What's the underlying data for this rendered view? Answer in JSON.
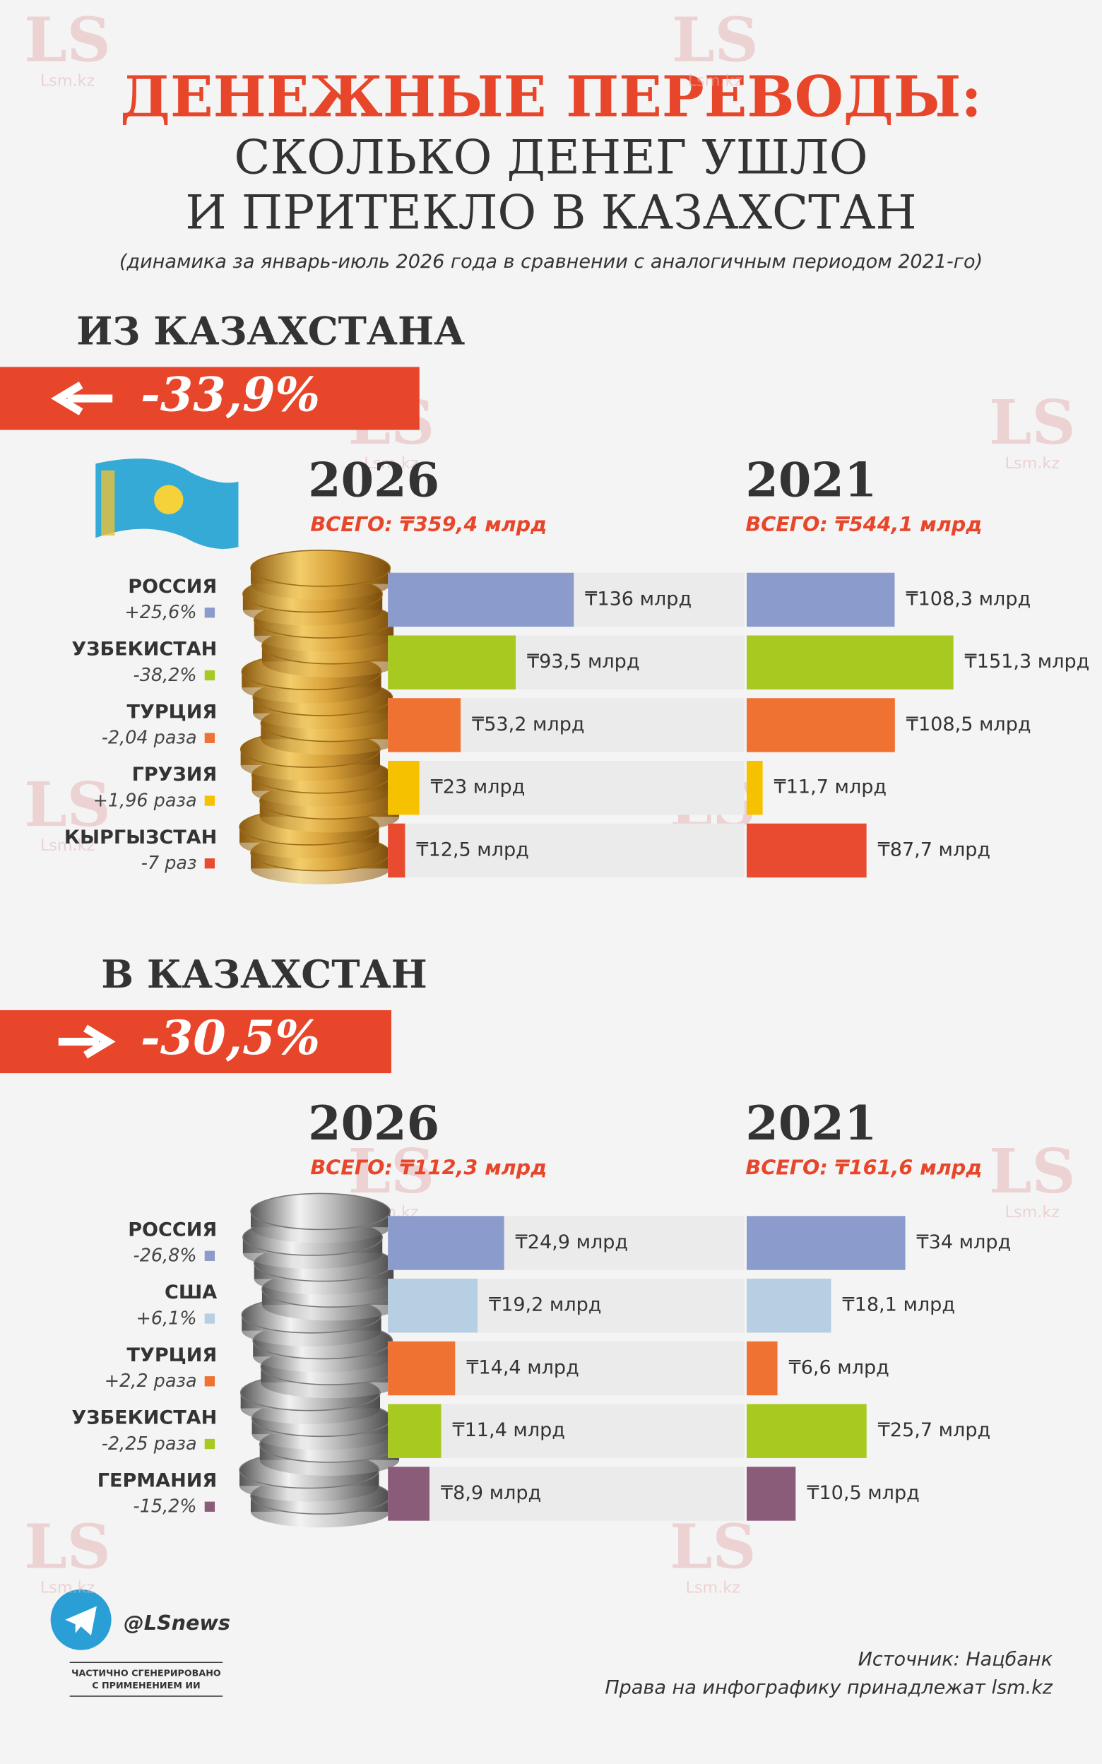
{
  "watermark": {
    "logo": "LS",
    "site": "Lsm.kz"
  },
  "header": {
    "title": "ДЕНЕЖНЫЕ ПЕРЕВОДЫ:",
    "subtitle_lines": [
      "СКОЛЬКО ДЕНЕГ УШЛО",
      "И ПРИТЕКЛО В КАЗАХСТАН"
    ],
    "note": "(динамика за январь-июль 2026 года в сравнении с аналогичным периодом 2021-го)"
  },
  "sections": [
    {
      "title": "ИЗ КАЗАХСТАНА",
      "change": "-33,9%",
      "countries": [
        {
          "name": "РОССИЯ",
          "change": "+25,6%",
          "color": "#8b9bcb"
        },
        {
          "name": "УЗБЕКИСТАН",
          "change": "-38,2%",
          "color": "#a8c920"
        },
        {
          "name": "ТУРЦИЯ",
          "change": "-2,04 раза",
          "color": "#f07232"
        },
        {
          "name": "ГРУЗИЯ",
          "change": "+1,96 раза",
          "color": "#f6c200"
        },
        {
          "name": "КЫРГЫЗСТАН",
          "change": "-7 раз",
          "color": "#e84b30"
        }
      ],
      "panels": [
        {
          "year": "2026",
          "total": "ВСЕГО: ₸359,4 млрд",
          "values": [
            136,
            93.5,
            53.2,
            23,
            12.5
          ],
          "value_labels": [
            "₸136 млрд",
            "₸93,5 млрд",
            "₸53,2 млрд",
            "₸23 млрд",
            "₸12,5 млрд"
          ]
        },
        {
          "year": "2021",
          "total": "ВСЕГО: ₸544,1 млрд",
          "values": [
            108.3,
            151.3,
            108.5,
            11.7,
            87.7
          ],
          "value_labels": [
            "₸108,3 млрд",
            "₸151,3 млрд",
            "₸108,5 млрд",
            "₸11,7 млрд",
            "₸87,7 млрд"
          ]
        }
      ]
    },
    {
      "title": "В КАЗАХСТАН",
      "change": "-30,5%",
      "countries": [
        {
          "name": "РОССИЯ",
          "change": "-26,8%",
          "color": "#8b9bcb"
        },
        {
          "name": "США",
          "change": "+6,1%",
          "color": "#b7cfe2"
        },
        {
          "name": "ТУРЦИЯ",
          "change": "+2,2 раза",
          "color": "#f07232"
        },
        {
          "name": "УЗБЕКИСТАН",
          "change": "-2,25 раза",
          "color": "#a8c920"
        },
        {
          "name": "ГЕРМАНИЯ",
          "change": "-15,2%",
          "color": "#8a5c7a"
        }
      ],
      "panels": [
        {
          "year": "2026",
          "total": "ВСЕГО: ₸112,3 млрд",
          "values": [
            24.9,
            19.2,
            14.4,
            11.4,
            8.9
          ],
          "value_labels": [
            "₸24,9 млрд",
            "₸19,2 млрд",
            "₸14,4 млрд",
            "₸11,4 млрд",
            "₸8,9 млрд"
          ]
        },
        {
          "year": "2021",
          "total": "ВСЕГО: ₸161,6 млрд",
          "values": [
            34,
            18.1,
            6.6,
            25.7,
            10.5
          ],
          "value_labels": [
            "₸34 млрд",
            "₸18,1 млрд",
            "₸6,6 млрд",
            "₸25,7 млрд",
            "₸10,5 млрд"
          ]
        }
      ]
    }
  ],
  "footer": {
    "handle": "@LSnews",
    "ai_note": [
      "ЧАСТИЧНО СГЕНЕРИРОВАНО",
      "С ПРИМЕНЕНИЕМ ИИ"
    ],
    "source": "Источник: Нацбанк",
    "rights": "Права на инфографику принадлежат lsm.kz"
  }
}
